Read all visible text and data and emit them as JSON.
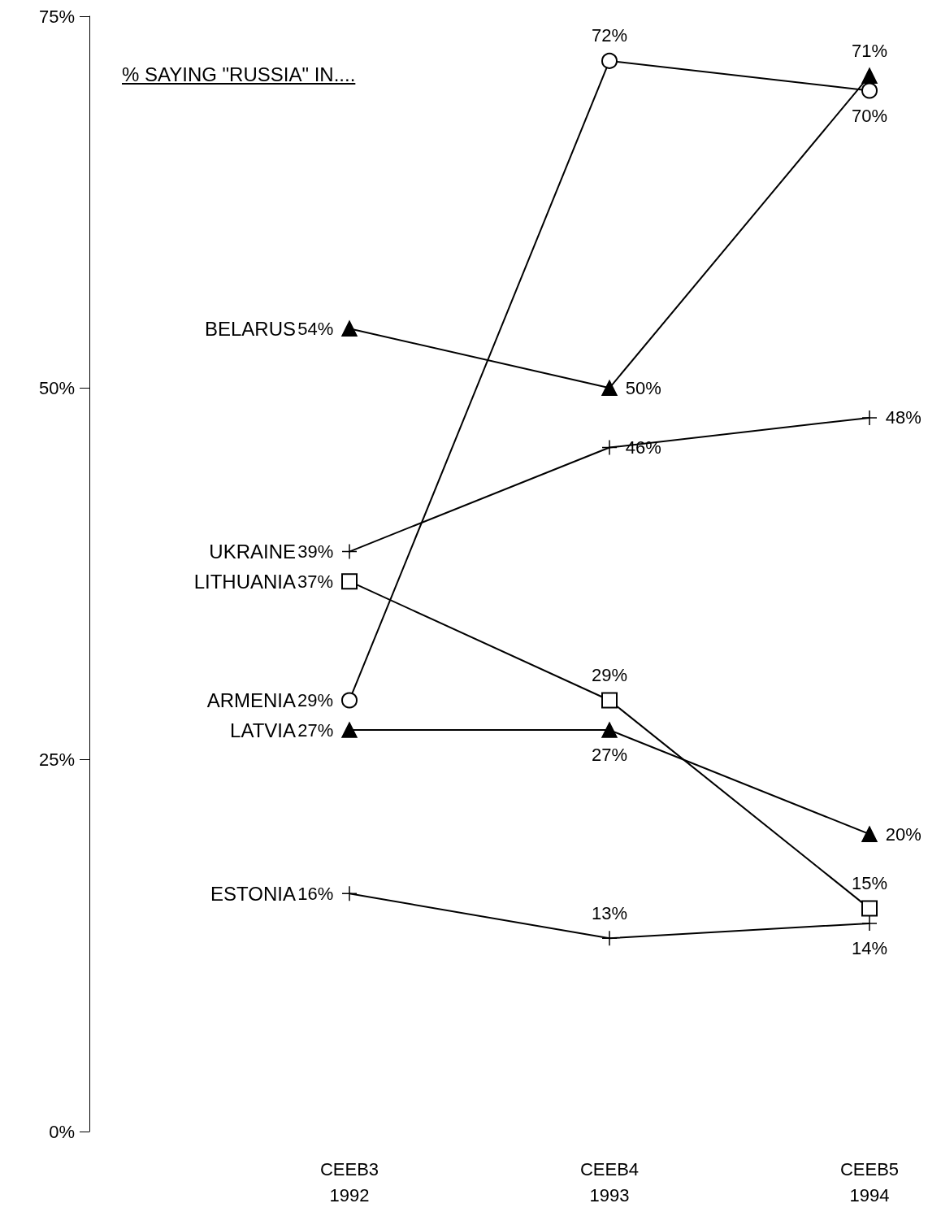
{
  "chart_data": {
    "type": "line",
    "title": "% SAYING \"RUSSIA\" IN....",
    "categories": [
      "CEEB3\n1992",
      "CEEB4\n1993",
      "CEEB5\n1994"
    ],
    "series": [
      {
        "name": "BELARUS",
        "color": "#000000",
        "marker": "triangle",
        "values": [
          54,
          50,
          71
        ],
        "value_labels": [
          "54%",
          "50%",
          "71%"
        ]
      },
      {
        "name": "UKRAINE",
        "color": "#000000",
        "marker": "cross",
        "values": [
          39,
          46,
          48
        ],
        "value_labels": [
          "39%",
          "46%",
          "48%"
        ]
      },
      {
        "name": "LITHUANIA",
        "color": "#000000",
        "marker": "square",
        "values": [
          37,
          29,
          15
        ],
        "value_labels": [
          "37%",
          "29%",
          "15%"
        ]
      },
      {
        "name": "ARMENIA",
        "color": "#000000",
        "marker": "circle",
        "values": [
          29,
          72,
          70
        ],
        "value_labels": [
          "29%",
          "72%",
          "70%"
        ]
      },
      {
        "name": "LATVIA",
        "color": "#000000",
        "marker": "triangle",
        "values": [
          27,
          27,
          20
        ],
        "value_labels": [
          "27%",
          "27%",
          "20%"
        ]
      },
      {
        "name": "ESTONIA",
        "color": "#000000",
        "marker": "cross",
        "values": [
          16,
          13,
          14
        ],
        "value_labels": [
          "16%",
          "13%",
          "14%"
        ]
      }
    ],
    "ylim": [
      0,
      75
    ],
    "yticks": [
      {
        "value": 0,
        "label": "0%"
      },
      {
        "value": 25,
        "label": "25%"
      },
      {
        "value": 50,
        "label": "50%"
      },
      {
        "value": 75,
        "label": "75%"
      }
    ],
    "grid": false,
    "legend": false,
    "line_style": "solid"
  }
}
